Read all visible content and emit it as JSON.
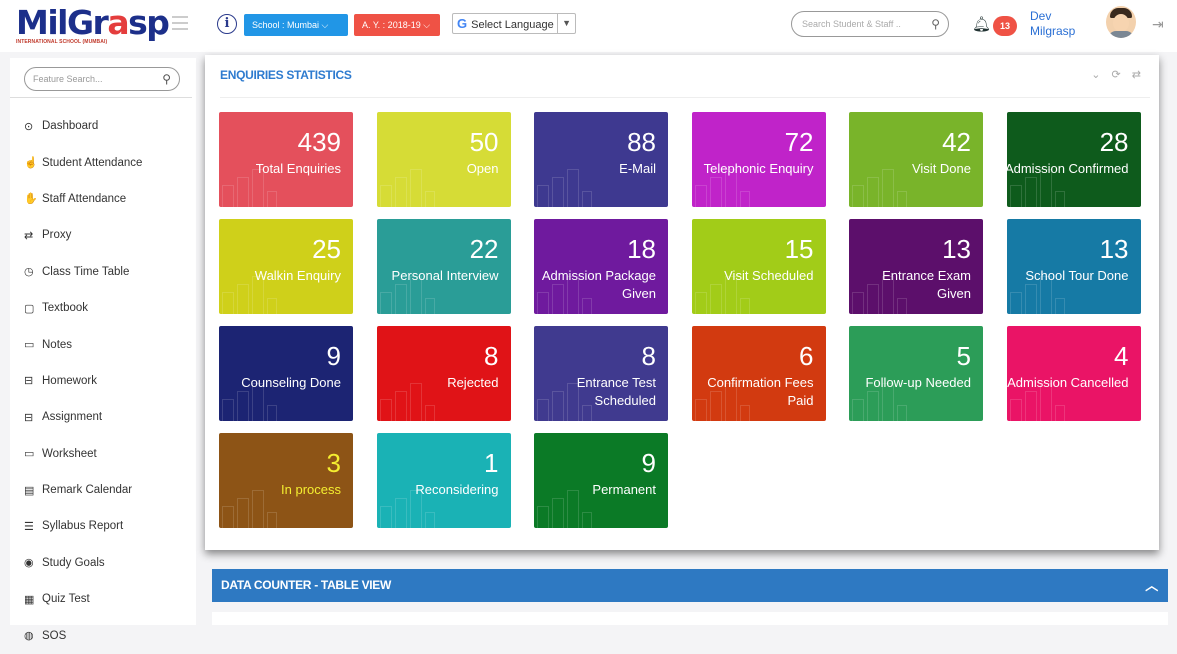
{
  "header": {
    "logo_main_part1": "MilGr",
    "logo_main_part2": "a",
    "logo_main_part3": "sp",
    "logo_sub": "INTERNATIONAL SCHOOL (MUMBAI)",
    "school_label": "School : Mumbai",
    "ay_label": "A. Y. : 2018-19",
    "language_label": "Select Language",
    "search_placeholder": "Search Student & Staff ..",
    "notification_count": "13",
    "user_first": "Dev",
    "user_last": "Milgrasp"
  },
  "sidebar": {
    "search_placeholder": "Feature Search...",
    "items": [
      {
        "label": "Dashboard",
        "icon": "clock-icon",
        "glyph": "⊙"
      },
      {
        "label": "Student Attendance",
        "icon": "hand-icon",
        "glyph": "☝"
      },
      {
        "label": "Staff Attendance",
        "icon": "hand-icon",
        "glyph": "✋"
      },
      {
        "label": "Proxy",
        "icon": "exchange-icon",
        "glyph": "⇄"
      },
      {
        "label": "Class Time Table",
        "icon": "clock-icon",
        "glyph": "◷"
      },
      {
        "label": "Textbook",
        "icon": "book-icon",
        "glyph": "▢"
      },
      {
        "label": "Notes",
        "icon": "note-icon",
        "glyph": "▭"
      },
      {
        "label": "Homework",
        "icon": "homework-icon",
        "glyph": "⊟"
      },
      {
        "label": "Assignment",
        "icon": "assignment-icon",
        "glyph": "⊟"
      },
      {
        "label": "Worksheet",
        "icon": "worksheet-icon",
        "glyph": "▭"
      },
      {
        "label": "Remark Calendar",
        "icon": "calendar-icon",
        "glyph": "▤"
      },
      {
        "label": "Syllabus Report",
        "icon": "report-icon",
        "glyph": "☰"
      },
      {
        "label": "Study Goals",
        "icon": "target-icon",
        "glyph": "◉"
      },
      {
        "label": "Quiz Test",
        "icon": "quiz-icon",
        "glyph": "▦"
      },
      {
        "label": "SOS",
        "icon": "sos-icon",
        "glyph": "◍"
      }
    ]
  },
  "panel": {
    "title": "ENQUIRIES STATISTICS",
    "tools": "⌄ ⟳ ⇄"
  },
  "cards": [
    {
      "count": "439",
      "label": "Total Enquiries",
      "color": "#e4505c"
    },
    {
      "count": "50",
      "label": "Open",
      "color": "#d6dc36"
    },
    {
      "count": "88",
      "label": "E-Mail",
      "color": "#3e3990"
    },
    {
      "count": "72",
      "label": "Telephonic Enquiry",
      "color": "#c023c9"
    },
    {
      "count": "42",
      "label": "Visit Done",
      "color": "#79b42a"
    },
    {
      "count": "28",
      "label": "Admission Confirmed",
      "color": "#0e5b1c"
    },
    {
      "count": "25",
      "label": "Walkin Enquiry",
      "color": "#cfd01a"
    },
    {
      "count": "22",
      "label": "Personal Interview",
      "color": "#2a9d97"
    },
    {
      "count": "18",
      "label": "Admission Package Given",
      "color": "#6f1a9e"
    },
    {
      "count": "15",
      "label": "Visit Scheduled",
      "color": "#a2cc18"
    },
    {
      "count": "13",
      "label": "Entrance Exam Given",
      "color": "#5c0f6b"
    },
    {
      "count": "13",
      "label": "School Tour Done",
      "color": "#167aa5"
    },
    {
      "count": "9",
      "label": "Counseling Done",
      "color": "#1c2473"
    },
    {
      "count": "8",
      "label": "Rejected",
      "color": "#e01317"
    },
    {
      "count": "8",
      "label": "Entrance Test Scheduled",
      "color": "#403a8f"
    },
    {
      "count": "6",
      "label": "Confirmation Fees Paid",
      "color": "#d23a10"
    },
    {
      "count": "5",
      "label": "Follow-up Needed",
      "color": "#2c9d58"
    },
    {
      "count": "4",
      "label": "Admission Cancelled",
      "color": "#ea1466"
    },
    {
      "count": "3",
      "label": "In process",
      "color": "#8d5416",
      "text_color": "#f4ee30"
    },
    {
      "count": "1",
      "label": "Reconsidering",
      "color": "#1ab2b5"
    },
    {
      "count": "9",
      "label": "Permanent",
      "color": "#0b7a26"
    }
  ],
  "counter_bar": {
    "title": "DATA COUNTER - TABLE VIEW"
  }
}
